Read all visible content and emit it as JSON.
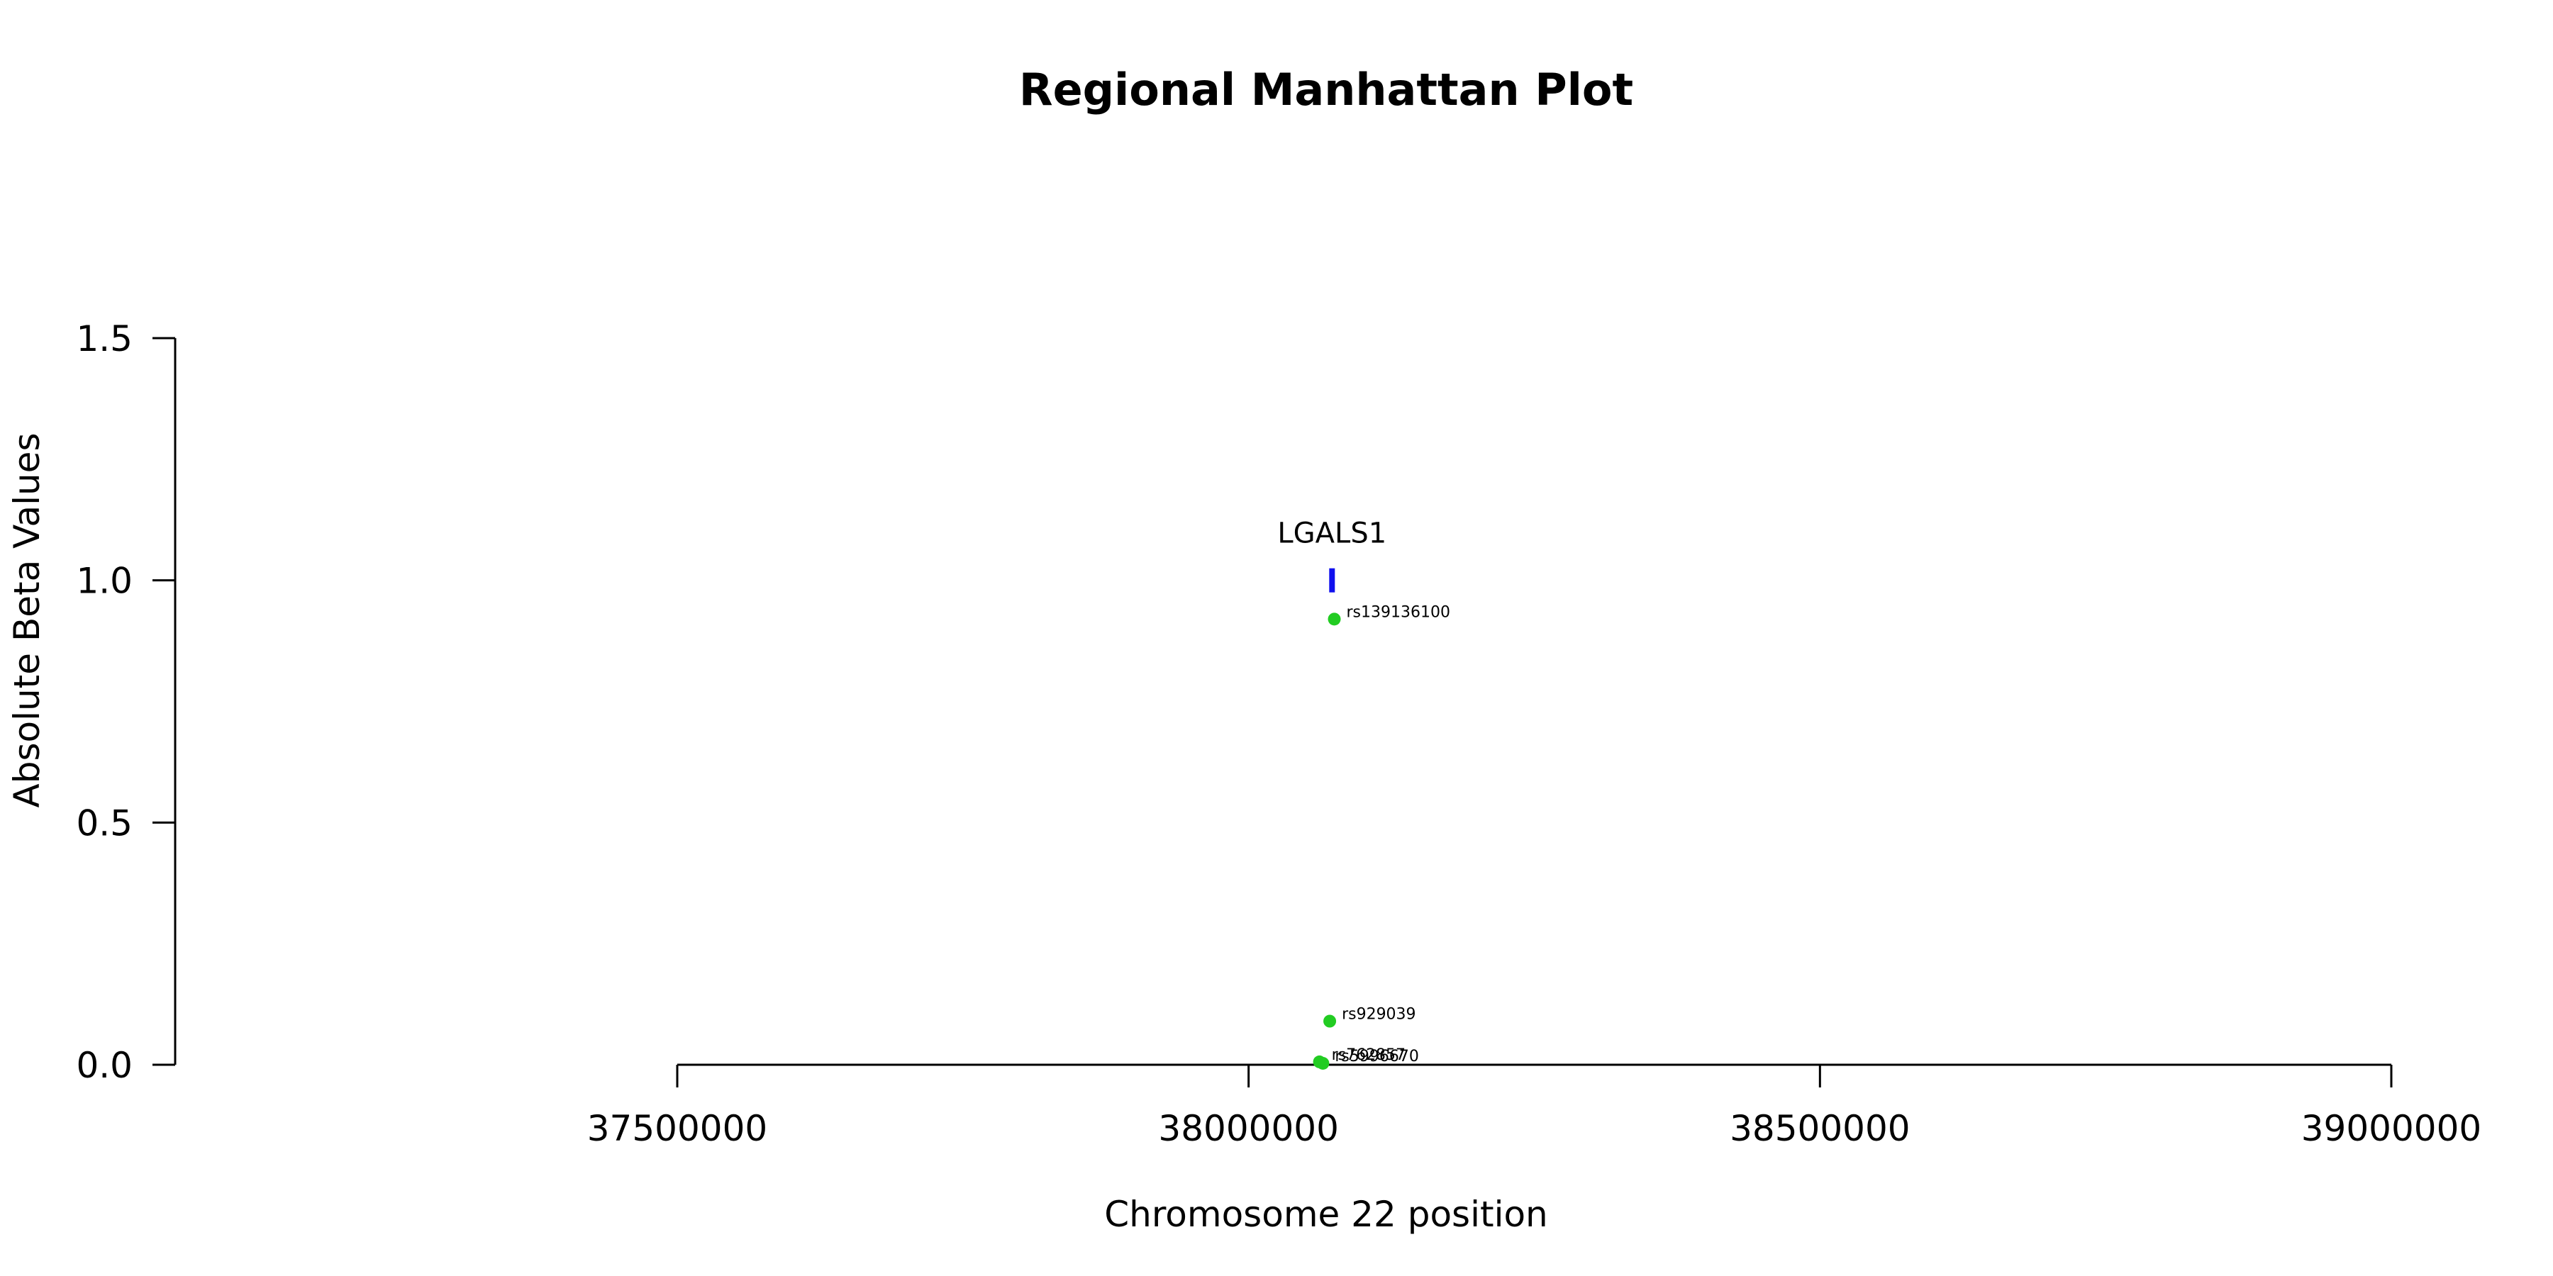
{
  "chart_data": {
    "type": "scatter",
    "title": "Regional Manhattan Plot",
    "xlabel": "Chromosome 22 position",
    "ylabel": "Absolute Beta Values",
    "xlim": [
      37500000,
      39000000
    ],
    "ylim": [
      0,
      1.5
    ],
    "x_ticks": [
      {
        "value": 37500000,
        "label": "37500000"
      },
      {
        "value": 38000000,
        "label": "38000000"
      },
      {
        "value": 38500000,
        "label": "38500000"
      },
      {
        "value": 39000000,
        "label": "39000000"
      }
    ],
    "y_ticks": [
      {
        "value": 0.0,
        "label": "0.0"
      },
      {
        "value": 0.5,
        "label": "0.5"
      },
      {
        "value": 1.0,
        "label": "1.0"
      },
      {
        "value": 1.5,
        "label": "1.5"
      }
    ],
    "point_color": "#22cc22",
    "points": [
      {
        "label": "rs139136100",
        "x": 38075000,
        "y": 0.92
      },
      {
        "label": "rs929039",
        "x": 38071000,
        "y": 0.09
      },
      {
        "label": "rs762857",
        "x": 38062000,
        "y": 0.006
      },
      {
        "label": "rs5996670",
        "x": 38065000,
        "y": 0.003
      }
    ],
    "gene": {
      "name": "LGALS1",
      "x": 38073000,
      "y": 1.0,
      "color": "#1010ee"
    },
    "grid": false,
    "legend": "none"
  }
}
